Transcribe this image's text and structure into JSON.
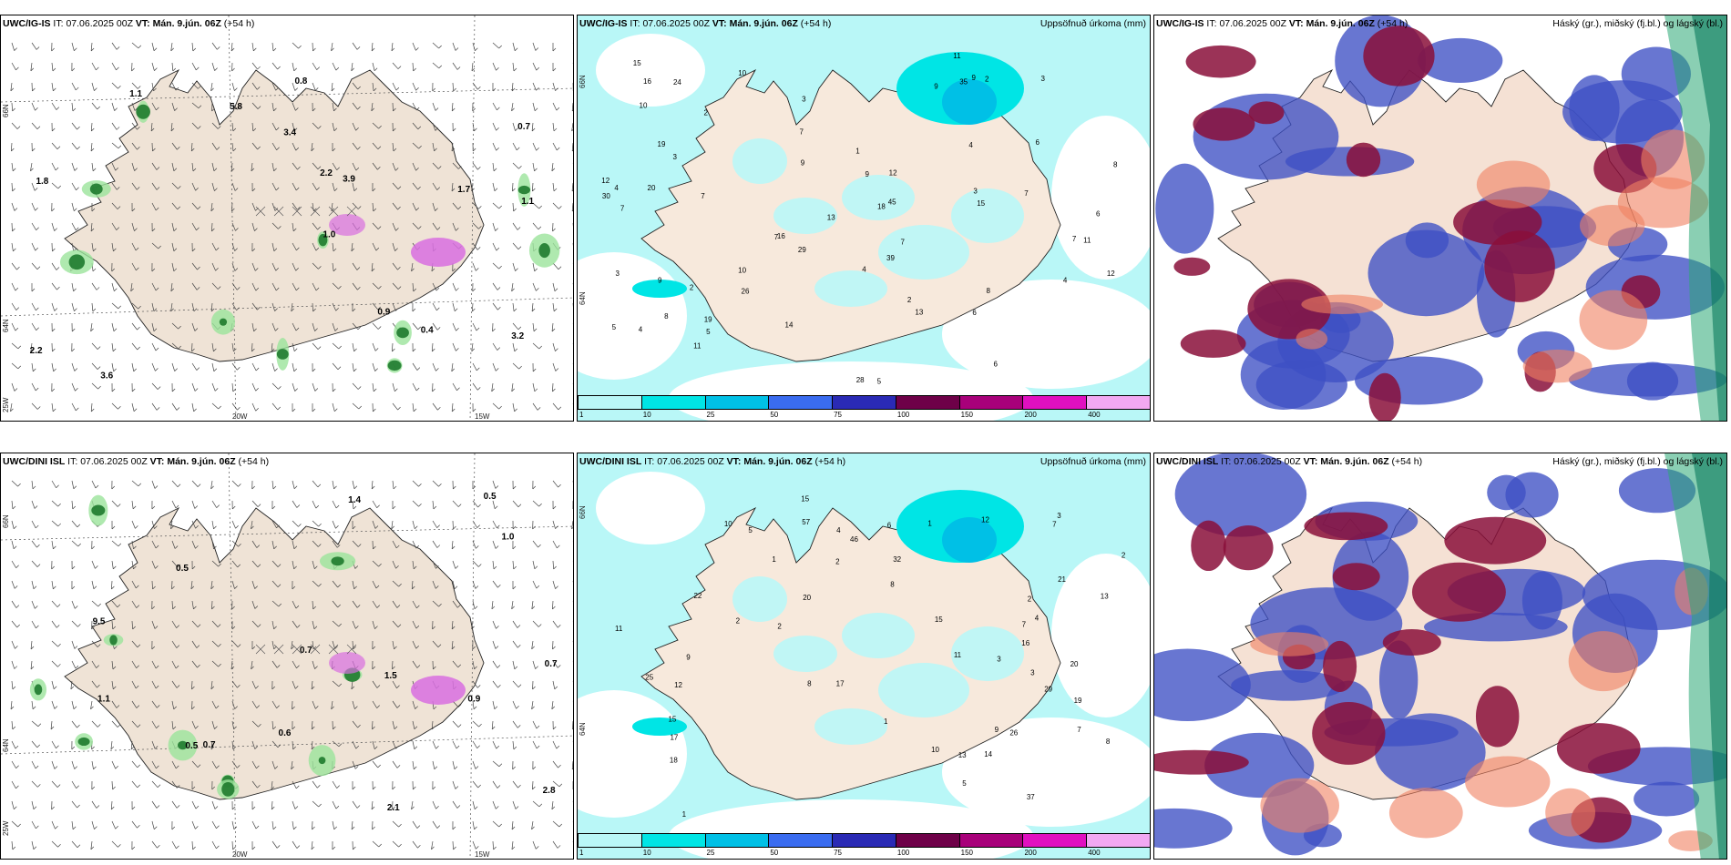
{
  "panels": [
    {
      "id": "p1",
      "title": "UWC/IG-IS",
      "run": "07.06.2025 00Z",
      "valid": "Mán. 9.jún. 06Z",
      "lead": "(+54 h)",
      "right": ""
    },
    {
      "id": "p2",
      "title": "UWC/IG-IS",
      "run": "07.06.2025 00Z",
      "valid": "Mán. 9.jún. 06Z",
      "lead": "(+54 h)",
      "right": "Uppsöfnuð úrkoma (mm)"
    },
    {
      "id": "p3",
      "title": "UWC/IG-IS",
      "run": "07.06.2025 00Z",
      "valid": "Mán. 9.jún. 06Z",
      "lead": "(+54 h)",
      "right": "Háský (gr.), miðský (fj.bl.) og lágský (bl.)"
    },
    {
      "id": "p4",
      "title": "UWC/DINI ISL",
      "run": "07.06.2025 00Z",
      "valid": "Mán. 9.jún. 06Z",
      "lead": "(+54 h)",
      "right": ""
    },
    {
      "id": "p5",
      "title": "UWC/DINI ISL",
      "run": "07.06.2025 00Z",
      "valid": "Mán. 9.jún. 06Z",
      "lead": "(+54 h)",
      "right": "Uppsöfnuð úrkoma (mm)"
    },
    {
      "id": "p6",
      "title": "UWC/DINI ISL",
      "run": "07.06.2025 00Z",
      "valid": "Mán. 9.jún. 06Z",
      "lead": "(+54 h)",
      "right": "Háský (gr.), miðský (fj.bl.) og lágský (bl.)"
    }
  ],
  "labels": {
    "it": "IT:",
    "vt": "VT:"
  },
  "grid": {
    "lat66": "66N",
    "lat64": "64N",
    "lon25": "25W",
    "lon20": "20W",
    "lon15": "15W"
  },
  "colorbar": {
    "ticks": [
      "1",
      "10",
      "25",
      "50",
      "75",
      "100",
      "150",
      "200",
      "400"
    ],
    "colors": [
      "#b9f7f7",
      "#00e5e5",
      "#00c0e6",
      "#3a6cf0",
      "#2a2ab5",
      "#6e0048",
      "#a8007a",
      "#e010c0",
      "#f2a8f2"
    ]
  },
  "precip_values_top": [
    "3",
    "2",
    "7",
    "7",
    "9",
    "6",
    "5",
    "15",
    "4",
    "2",
    "3",
    "7",
    "10",
    "19",
    "18",
    "16",
    "12",
    "11",
    "4",
    "5",
    "7",
    "4",
    "9",
    "10",
    "15",
    "8",
    "7",
    "8",
    "6",
    "1",
    "3",
    "4",
    "11",
    "3",
    "5",
    "12",
    "35",
    "39",
    "16",
    "20",
    "13",
    "28",
    "26",
    "19",
    "45",
    "12",
    "11",
    "13",
    "10",
    "9",
    "8",
    "6",
    "9",
    "30",
    "7",
    "2",
    "4",
    "14",
    "7",
    "29",
    "24",
    "6",
    "9",
    "3",
    "2"
  ],
  "precip_values_bottom": [
    "20",
    "3",
    "15",
    "1",
    "4",
    "3",
    "7",
    "10",
    "2",
    "1",
    "5",
    "16",
    "19",
    "8",
    "12",
    "7",
    "26",
    "37",
    "13",
    "46",
    "18",
    "32",
    "20",
    "17",
    "21",
    "29",
    "25",
    "13",
    "22",
    "57",
    "15",
    "14",
    "11",
    "9",
    "4",
    "5",
    "17",
    "7",
    "8",
    "1",
    "2",
    "2",
    "6",
    "12",
    "8",
    "10",
    "2",
    "15",
    "11",
    "9",
    "3",
    "2",
    "1"
  ],
  "wind_values_top": [
    "3.4",
    "0.7",
    "1.7",
    "1.1",
    "0.4",
    "2.2",
    "1.0",
    "0.9",
    "0.8",
    "3.2",
    "1.8",
    "2.2",
    "3.9",
    "3.6",
    "5.8",
    "1.1"
  ],
  "wind_values_bottom": [
    "0.5",
    "1.5",
    "2.1",
    "0.6",
    "0.7",
    "0.7",
    "2.8",
    "9.5",
    "0.5",
    "1.1",
    "0.9",
    "1.4",
    "0.5",
    "0.7",
    "1.0"
  ]
}
